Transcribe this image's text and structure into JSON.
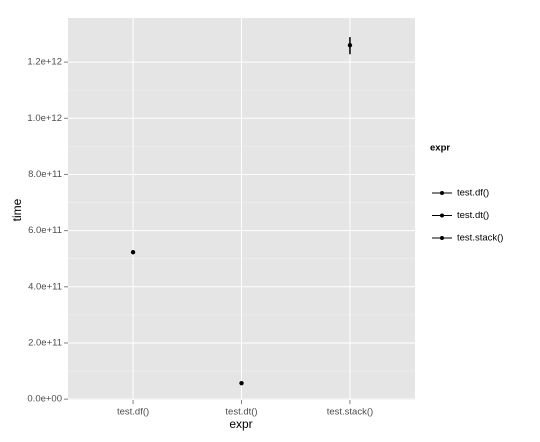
{
  "chart_data": {
    "type": "pointrange",
    "x_label": "expr",
    "y_label": "time",
    "categories": [
      "test.df()",
      "test.dt()",
      "test.stack()"
    ],
    "series": [
      {
        "name": "expr",
        "color": "#000000",
        "values": [
          523000000000,
          57000000000,
          1260000000000
        ],
        "low": [
          522000000000,
          56000000000,
          1228000000000
        ],
        "high": [
          524000000000,
          58000000000,
          1289000000000
        ]
      }
    ],
    "legend_title": "expr",
    "legend": "right",
    "ylim": [
      -3000000000,
      1357000000000
    ],
    "yticks": [
      {
        "value": 0,
        "label": "0.0e+00"
      },
      {
        "value": 200000000000,
        "label": "2.0e+11"
      },
      {
        "value": 400000000000,
        "label": "4.0e+11"
      },
      {
        "value": 600000000000,
        "label": "6.0e+11"
      },
      {
        "value": 800000000000,
        "label": "8.0e+11"
      },
      {
        "value": 1000000000000,
        "label": "1.0e+12"
      },
      {
        "value": 1200000000000,
        "label": "1.2e+12"
      }
    ],
    "grid": true
  }
}
